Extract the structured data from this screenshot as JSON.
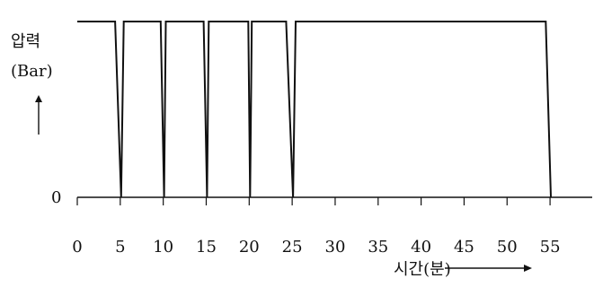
{
  "chart_data": {
    "type": "line",
    "title": "",
    "ylabel_line1": "압력",
    "ylabel_line2": "(Bar)",
    "xlabel": "시간(분)",
    "y_tick_label": "0",
    "x_ticks": [
      0,
      5,
      10,
      15,
      20,
      25,
      30,
      35,
      40,
      45,
      50,
      55
    ],
    "xlim": [
      0,
      57.5
    ],
    "ylim": [
      0,
      1
    ],
    "grid": false,
    "legend": "none",
    "series": [
      {
        "x": [
          0,
          4.4,
          5.1,
          5.4,
          9.7,
          10.1,
          10.3,
          14.7,
          15.1,
          15.3,
          19.9,
          20.1,
          20.3,
          24.3,
          25.1,
          25.4,
          54.5,
          55.1
        ],
        "y": [
          1,
          1,
          0,
          1,
          1,
          0,
          1,
          1,
          0,
          1,
          1,
          0,
          1,
          1,
          0,
          1,
          1,
          0
        ]
      }
    ],
    "line_color": "#111111"
  }
}
